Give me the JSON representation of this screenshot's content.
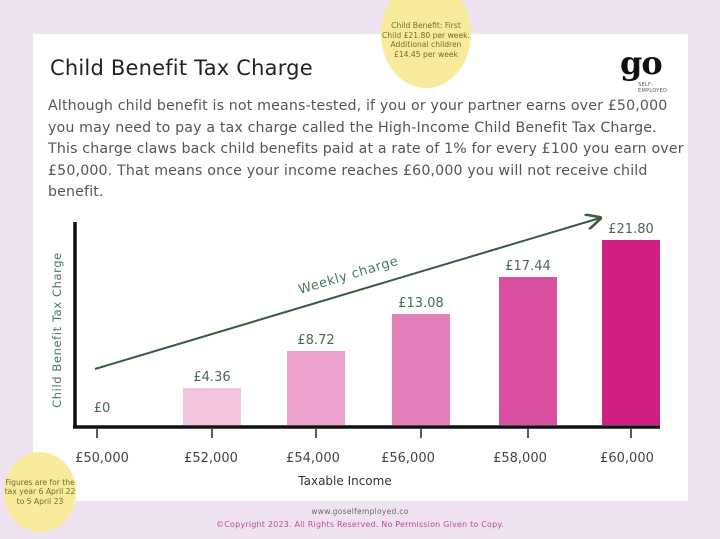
{
  "header": {
    "title": "Child Benefit Tax Charge",
    "logo_text": "go",
    "logo_subtext_1": "SELF-",
    "logo_subtext_2": "EMPLOYED"
  },
  "intro": {
    "text": "Although child benefit is not means-tested, if you or your partner earns over £50,000 you may need to pay a tax charge called the High-Income Child Benefit Tax Charge. This charge claws back child benefits paid at a rate of 1% for every £100 you earn over £50,000. That means once your income reaches £60,000 you will not receive child benefit."
  },
  "bubbles": {
    "top": "Child Benefit: First Child £21.80 per week. Additional children £14.45 per week",
    "bottom": "Figures are for the tax year 6 April 22 to 5 April 23"
  },
  "chart_data": {
    "type": "bar",
    "title": "Child Benefit Tax Charge",
    "xlabel": "Taxable Income",
    "ylabel": "Child Benefit Tax Charge",
    "categories": [
      "£50,000",
      "£52,000",
      "£54,000",
      "£56,000",
      "£58,000",
      "£60,000"
    ],
    "values": [
      0,
      4.36,
      8.72,
      13.08,
      17.44,
      21.8
    ],
    "value_labels": [
      "£0",
      "£4.36",
      "£8.72",
      "£13.08",
      "£17.44",
      "£21.80"
    ],
    "bar_colors": [
      "#ffffff",
      "#f2c4dd",
      "#eba2cb",
      "#e27fb8",
      "#da50a0",
      "#cf1f82"
    ],
    "annotation": "Weekly charge",
    "annotation_color": "#3b5a3f",
    "ylim": [
      0,
      22
    ],
    "grid": false,
    "legend": "none"
  },
  "footer": {
    "url": "www.goselfemployed.co",
    "copyright": "©Copyright 2023. All Rights Reserved. No Permission Given to Copy."
  }
}
